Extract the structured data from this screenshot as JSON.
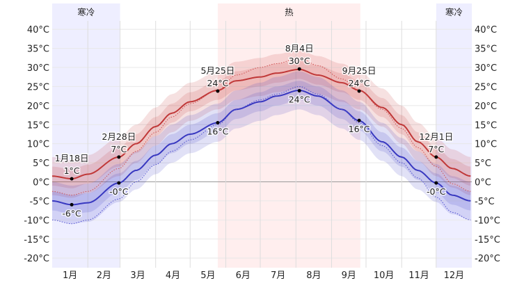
{
  "chart_data": {
    "type": "area",
    "ylim": [
      -22,
      42
    ],
    "yticks": [
      40,
      35,
      30,
      25,
      20,
      15,
      10,
      5,
      0,
      -5,
      -10,
      -15,
      -20
    ],
    "ytick_labels": [
      "40°C",
      "35°C",
      "30°C",
      "25°C",
      "20°C",
      "15°C",
      "10°C",
      "5°C",
      "0°C",
      "-5°C",
      "-10°C",
      "-15°C",
      "-20°C"
    ],
    "months": [
      "1月",
      "2月",
      "3月",
      "4月",
      "5月",
      "6月",
      "7月",
      "8月",
      "9月",
      "10月",
      "11月",
      "12月"
    ],
    "grid": true,
    "seasons": [
      {
        "label": "寒冷",
        "start_day": 1,
        "end_day": 59,
        "color": "#eeeeff"
      },
      {
        "label": "热",
        "start_day": 145,
        "end_day": 268,
        "color": "#ffeeee"
      },
      {
        "label": "寒冷",
        "start_day": 335,
        "end_day": 365,
        "color": "#eeeeff"
      }
    ],
    "days": [
      1,
      18,
      32,
      59,
      74,
      91,
      105,
      121,
      145,
      161,
      182,
      196,
      216,
      232,
      253,
      268,
      288,
      305,
      319,
      335,
      349,
      365
    ],
    "series": [
      {
        "key": "high",
        "color": "#c03838",
        "values": [
          1.5,
          0.8,
          2,
          6.5,
          10,
          14.5,
          18,
          21,
          24,
          26.5,
          27.5,
          28.5,
          29.5,
          28,
          26,
          24,
          19.5,
          15,
          10.5,
          6.5,
          3.5,
          1.5
        ]
      },
      {
        "key": "low",
        "color": "#3838c0",
        "values": [
          -5,
          -6,
          -5.5,
          -0.3,
          3,
          7,
          10,
          12.5,
          15.5,
          19,
          21,
          22.5,
          24,
          22.5,
          19,
          16,
          10.5,
          6.5,
          3,
          -0.3,
          -3.5,
          -5
        ]
      },
      {
        "key": "high_dotted",
        "color": "#d05050",
        "values": [
          -2.5,
          -3.5,
          -2.5,
          3.5,
          8,
          13,
          17,
          20.5,
          24,
          28,
          30,
          31,
          32.5,
          30.5,
          27,
          24,
          19,
          14,
          9,
          4,
          -0.5,
          -2.5
        ]
      },
      {
        "key": "low_dotted",
        "color": "#5050d0",
        "values": [
          -10,
          -11,
          -10,
          -4.5,
          0,
          4.5,
          8,
          11,
          15,
          19,
          21.5,
          23,
          25,
          23,
          19,
          15.5,
          9.5,
          5,
          1,
          -4,
          -8,
          -10
        ]
      }
    ],
    "annotations": [
      {
        "day": 18,
        "value": 0.8,
        "date": "1月18日",
        "text": "1°C",
        "pos": "above"
      },
      {
        "day": 18,
        "value": -6,
        "date": "",
        "text": "-6°C",
        "pos": "below"
      },
      {
        "day": 59,
        "value": 6.5,
        "date": "2月28日",
        "text": "7°C",
        "pos": "above"
      },
      {
        "day": 59,
        "value": -0.3,
        "date": "",
        "text": "-0°C",
        "pos": "below"
      },
      {
        "day": 145,
        "value": 23.8,
        "date": "5月25日",
        "text": "24°C",
        "pos": "above"
      },
      {
        "day": 145,
        "value": 15.5,
        "date": "",
        "text": "16°C",
        "pos": "below"
      },
      {
        "day": 216,
        "value": 29.6,
        "date": "8月4日",
        "text": "30°C",
        "pos": "above"
      },
      {
        "day": 216,
        "value": 23.9,
        "date": "",
        "text": "24°C",
        "pos": "below"
      },
      {
        "day": 268,
        "value": 23.8,
        "date": "9月25日",
        "text": "24°C",
        "pos": "above"
      },
      {
        "day": 268,
        "value": 16.1,
        "date": "",
        "text": "16°C",
        "pos": "below"
      },
      {
        "day": 335,
        "value": 6.5,
        "date": "12月1日",
        "text": "7°C",
        "pos": "above"
      },
      {
        "day": 335,
        "value": -0.3,
        "date": "",
        "text": "-0°C",
        "pos": "below"
      }
    ]
  }
}
